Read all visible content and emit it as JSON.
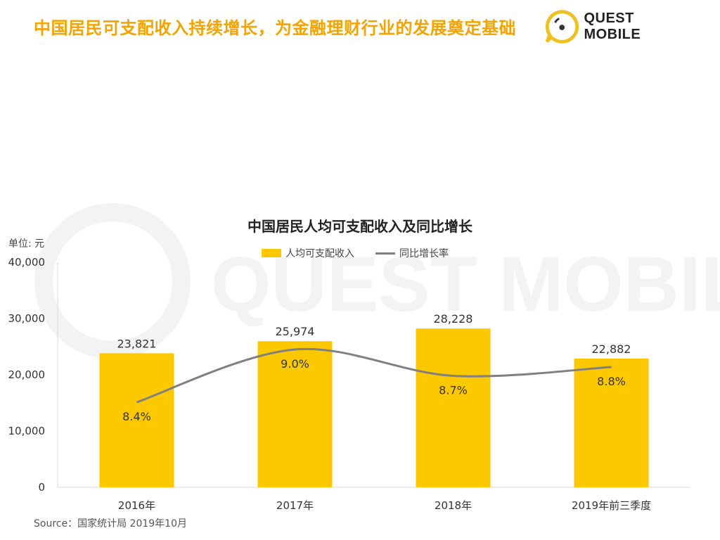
{
  "header": {
    "title": "中国居民可支配收入持续增长，为金融理财行业的发展奠定基础",
    "brand": "QUEST MOBILE"
  },
  "watermark": {
    "text": "QUEST MOBILE"
  },
  "chart_data": {
    "type": "bar",
    "title": "中国居民人均可支配收入及同比增长",
    "unit": "单位: 元",
    "categories": [
      "2016年",
      "2017年",
      "2018年",
      "2019年前三季度"
    ],
    "series": [
      {
        "name": "人均可支配收入",
        "type": "bar",
        "values": [
          23821,
          25974,
          28228,
          22882
        ],
        "labels": [
          "23,821",
          "25,974",
          "28,228",
          "22,882"
        ],
        "color": "#fcc800"
      },
      {
        "name": "同比增长率",
        "type": "line",
        "values": [
          8.4,
          9.0,
          8.7,
          8.8
        ],
        "labels": [
          "8.4%",
          "9.0%",
          "8.7%",
          "8.8%"
        ],
        "color": "#808080"
      }
    ],
    "ylim": [
      0,
      40000
    ],
    "yticks": [
      "0",
      "10,000",
      "20,000",
      "30,000",
      "40,000"
    ],
    "grid": false,
    "legend": "top-center"
  },
  "source": "Source：国家统计局 2019年10月"
}
